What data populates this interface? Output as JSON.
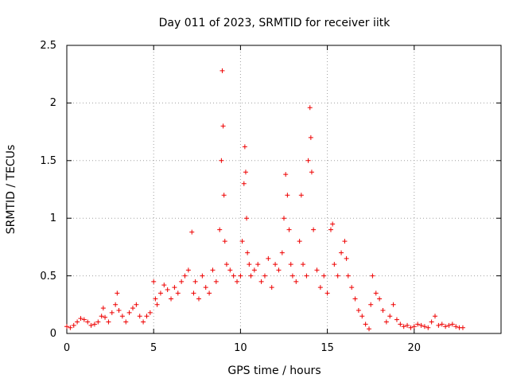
{
  "chart_data": {
    "type": "scatter",
    "title": "Day 011 of 2023, SRMTID for receiver iitk",
    "xlabel": "GPS time / hours",
    "ylabel": "SRMTID / TECUs",
    "xlim": [
      0,
      25
    ],
    "ylim": [
      0,
      2.5
    ],
    "xticks": [
      0,
      5,
      10,
      15,
      20
    ],
    "yticks": [
      0,
      0.5,
      1,
      1.5,
      2,
      2.5
    ],
    "xtick_labels": [
      "0",
      "5",
      "10",
      "15",
      "20"
    ],
    "ytick_labels": [
      "0",
      "0.5",
      "1",
      "1.5",
      "2",
      "2.5"
    ],
    "grid": true,
    "marker": "+",
    "series": [
      {
        "name": "SRMTID",
        "color": "#ee0000",
        "x": [
          0.0,
          0.2,
          0.4,
          0.6,
          0.8,
          1.0,
          1.2,
          1.4,
          1.6,
          1.8,
          2.0,
          2.1,
          2.2,
          2.4,
          2.6,
          2.8,
          2.9,
          3.0,
          3.2,
          3.4,
          3.6,
          3.8,
          4.0,
          4.2,
          4.4,
          4.6,
          4.8,
          5.0,
          5.1,
          5.2,
          5.4,
          5.6,
          5.8,
          6.0,
          6.2,
          6.4,
          6.6,
          6.8,
          7.0,
          7.2,
          7.3,
          7.4,
          7.6,
          7.8,
          8.0,
          8.2,
          8.4,
          8.6,
          8.8,
          8.9,
          8.95,
          9.0,
          9.05,
          9.1,
          9.2,
          9.4,
          9.6,
          9.8,
          10.0,
          10.1,
          10.2,
          10.25,
          10.3,
          10.35,
          10.4,
          10.5,
          10.6,
          10.8,
          11.0,
          11.2,
          11.4,
          11.6,
          11.8,
          12.0,
          12.2,
          12.4,
          12.5,
          12.6,
          12.7,
          12.8,
          12.9,
          13.0,
          13.2,
          13.4,
          13.5,
          13.6,
          13.8,
          13.9,
          14.0,
          14.05,
          14.1,
          14.2,
          14.4,
          14.6,
          14.8,
          15.0,
          15.2,
          15.3,
          15.4,
          15.6,
          15.8,
          16.0,
          16.1,
          16.2,
          16.4,
          16.6,
          16.8,
          17.0,
          17.2,
          17.4,
          17.5,
          17.6,
          17.8,
          18.0,
          18.2,
          18.4,
          18.6,
          18.8,
          19.0,
          19.2,
          19.4,
          19.6,
          19.8,
          20.0,
          20.2,
          20.4,
          20.6,
          20.8,
          21.0,
          21.2,
          21.4,
          21.6,
          21.8,
          22.0,
          22.2,
          22.4,
          22.6,
          22.8
        ],
        "y": [
          0.06,
          0.05,
          0.07,
          0.1,
          0.13,
          0.12,
          0.1,
          0.07,
          0.08,
          0.1,
          0.15,
          0.22,
          0.14,
          0.1,
          0.18,
          0.25,
          0.35,
          0.2,
          0.15,
          0.1,
          0.18,
          0.22,
          0.25,
          0.15,
          0.1,
          0.15,
          0.18,
          0.45,
          0.3,
          0.25,
          0.35,
          0.42,
          0.38,
          0.3,
          0.4,
          0.35,
          0.45,
          0.5,
          0.55,
          0.88,
          0.35,
          0.45,
          0.3,
          0.5,
          0.4,
          0.35,
          0.55,
          0.45,
          0.9,
          1.5,
          2.28,
          1.8,
          1.2,
          0.8,
          0.6,
          0.55,
          0.5,
          0.45,
          0.5,
          0.8,
          1.3,
          1.62,
          1.4,
          1.0,
          0.7,
          0.6,
          0.5,
          0.55,
          0.6,
          0.45,
          0.5,
          0.65,
          0.4,
          0.6,
          0.55,
          0.7,
          1.0,
          1.38,
          1.2,
          0.9,
          0.6,
          0.5,
          0.45,
          0.8,
          1.2,
          0.6,
          0.5,
          1.5,
          1.96,
          1.7,
          1.4,
          0.9,
          0.55,
          0.4,
          0.5,
          0.35,
          0.9,
          0.95,
          0.6,
          0.5,
          0.7,
          0.8,
          0.65,
          0.5,
          0.4,
          0.3,
          0.2,
          0.15,
          0.08,
          0.04,
          0.25,
          0.5,
          0.35,
          0.3,
          0.2,
          0.1,
          0.15,
          0.25,
          0.12,
          0.08,
          0.06,
          0.07,
          0.05,
          0.06,
          0.08,
          0.07,
          0.06,
          0.05,
          0.1,
          0.15,
          0.07,
          0.08,
          0.06,
          0.07,
          0.08,
          0.06,
          0.05,
          0.05
        ]
      }
    ]
  }
}
